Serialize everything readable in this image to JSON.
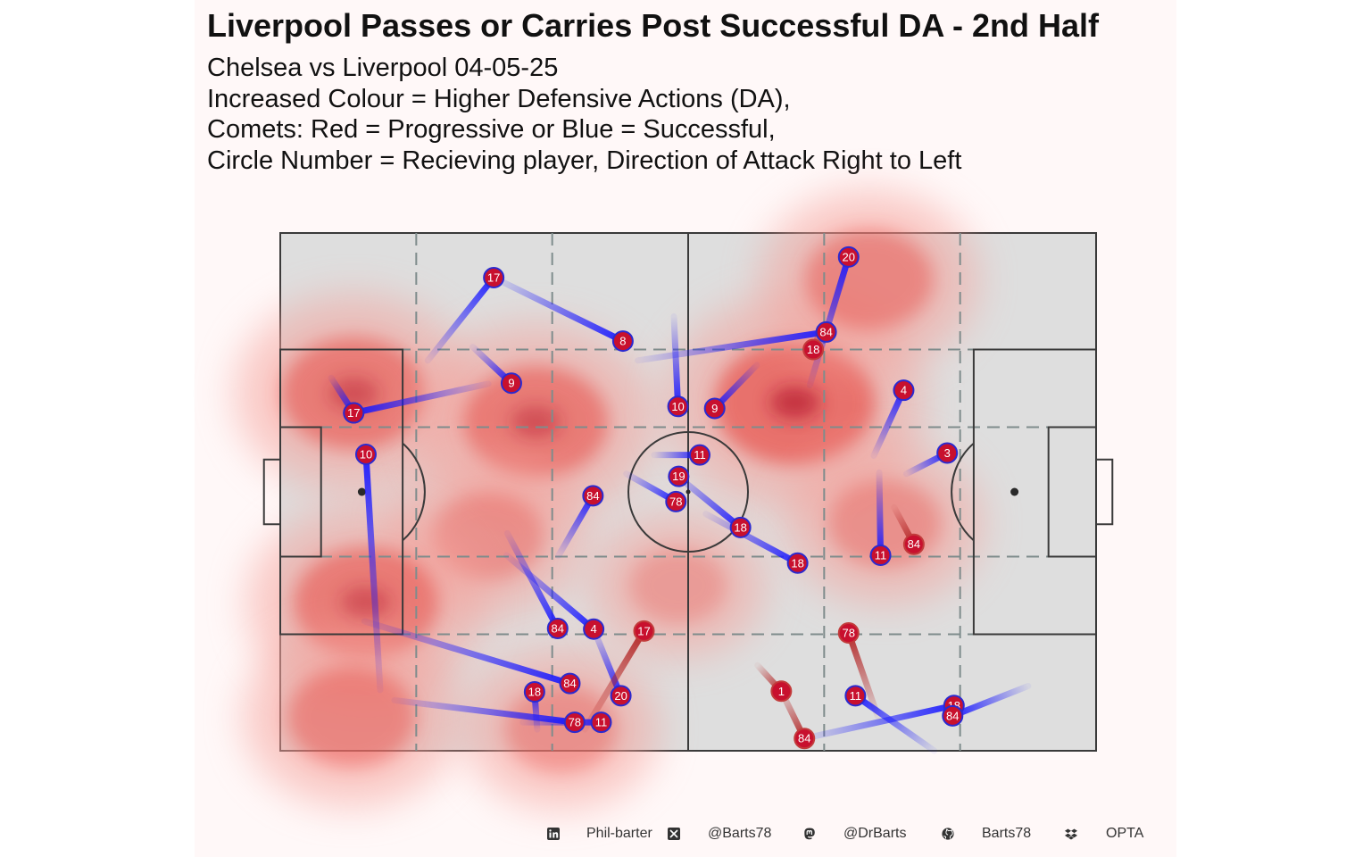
{
  "title": "Liverpool Passes or Carries Post Successful DA - 2nd Half",
  "subtitle_lines": [
    "Chelsea vs Liverpool 04-05-25",
    "Increased Colour = Higher Defensive Actions (DA),",
    "Comets: Red = Progressive or Blue = Successful,",
    "Circle Number = Recieving player, Direction of Attack Right to Left"
  ],
  "footer": {
    "linkedin": "Phil-barter",
    "x_handle": "@Barts78",
    "mastodon": "@DrBarts",
    "github": "Barts78",
    "source": "OPTA"
  },
  "icons": [
    "linkedin-icon",
    "x-icon",
    "mastodon-icon",
    "github-icon",
    "dropbox-icon"
  ],
  "colors": {
    "progressive": "#b22222",
    "successful": "#1a1aff",
    "marker_fill": "#c8102e",
    "pitch": "#dedede",
    "density": "#e8463f"
  },
  "chart_data": {
    "type": "scatter",
    "pitch_length": 120,
    "pitch_width": 80,
    "density_regions": [
      {
        "x": 10.8,
        "y": 55.2,
        "level": 4
      },
      {
        "x": 37.6,
        "y": 50.8,
        "level": 4
      },
      {
        "x": 30.5,
        "y": 33.1,
        "level": 2
      },
      {
        "x": 12.6,
        "y": 22.8,
        "level": 4
      },
      {
        "x": 10.5,
        "y": 5.2,
        "level": 3
      },
      {
        "x": 41.3,
        "y": 3.4,
        "level": 2
      },
      {
        "x": 75.7,
        "y": 53.8,
        "level": 5
      },
      {
        "x": 86.6,
        "y": 72.8,
        "level": 3
      },
      {
        "x": 88.9,
        "y": 35.1,
        "level": 2
      },
      {
        "x": 58.5,
        "y": 25.5,
        "level": 1
      }
    ],
    "actions": [
      {
        "type": "successful",
        "from": [
          21.7,
          60.3
        ],
        "to": [
          31.4,
          73.1
        ],
        "player": "17"
      },
      {
        "type": "successful",
        "from": [
          31.4,
          73.1
        ],
        "to": [
          50.4,
          63.3
        ],
        "player": "8"
      },
      {
        "type": "successful",
        "from": [
          28.3,
          62.4
        ],
        "to": [
          34.0,
          56.8
        ],
        "player": "9"
      },
      {
        "type": "successful",
        "from": [
          7.5,
          57.6
        ],
        "to": [
          10.8,
          52.2
        ],
        "player": "17"
      },
      {
        "type": "successful",
        "from": [
          30.6,
          56.7
        ],
        "to": [
          10.8,
          52.2
        ],
        "player": "17"
      },
      {
        "type": "successful",
        "from": [
          14.7,
          9.4
        ],
        "to": [
          12.6,
          45.8
        ],
        "player": "10"
      },
      {
        "type": "successful",
        "from": [
          57.9,
          67.1
        ],
        "to": [
          58.5,
          53.2
        ],
        "player": "10"
      },
      {
        "type": "successful",
        "from": [
          70.1,
          59.6
        ],
        "to": [
          63.9,
          52.9
        ],
        "player": "9"
      },
      {
        "type": "successful",
        "from": [
          52.6,
          60.3
        ],
        "to": [
          80.3,
          64.7
        ],
        "player": "84"
      },
      {
        "type": "successful",
        "from": [
          77.9,
          56.5
        ],
        "to": [
          83.6,
          76.3
        ],
        "player": "20"
      },
      {
        "type": "progressive",
        "from": [
          79.4,
          64.7
        ],
        "to": [
          78.4,
          62.0
        ],
        "player": "18"
      },
      {
        "type": "successful",
        "from": [
          87.3,
          45.6
        ],
        "to": [
          91.7,
          55.7
        ],
        "player": "4"
      },
      {
        "type": "successful",
        "from": [
          92.1,
          42.8
        ],
        "to": [
          98.1,
          46.0
        ],
        "player": "3"
      },
      {
        "type": "successful",
        "from": [
          88.1,
          43.0
        ],
        "to": [
          88.3,
          30.2
        ],
        "player": "11"
      },
      {
        "type": "progressive",
        "from": [
          90.3,
          37.6
        ],
        "to": [
          93.2,
          31.9
        ],
        "player": "84"
      },
      {
        "type": "successful",
        "from": [
          55.0,
          45.7
        ],
        "to": [
          61.7,
          45.7
        ],
        "player": "11"
      },
      {
        "type": "successful",
        "from": [
          50.9,
          42.8
        ],
        "to": [
          58.2,
          38.5
        ],
        "player": "78"
      },
      {
        "type": "successful",
        "from": [
          57.7,
          42.1
        ],
        "to": [
          58.6,
          42.4
        ],
        "player": "19"
      },
      {
        "type": "successful",
        "from": [
          58.0,
          42.8
        ],
        "to": [
          67.7,
          34.5
        ],
        "player": "18"
      },
      {
        "type": "successful",
        "from": [
          62.6,
          36.6
        ],
        "to": [
          76.1,
          29.0
        ],
        "player": "18"
      },
      {
        "type": "successful",
        "from": [
          40.9,
          30.1
        ],
        "to": [
          46.0,
          39.4
        ],
        "player": "84"
      },
      {
        "type": "successful",
        "from": [
          33.4,
          33.6
        ],
        "to": [
          40.8,
          18.9
        ],
        "player": "84"
      },
      {
        "type": "successful",
        "from": [
          33.3,
          30.2
        ],
        "to": [
          46.1,
          18.8
        ],
        "player": "4"
      },
      {
        "type": "successful",
        "from": [
          46.1,
          18.8
        ],
        "to": [
          50.1,
          8.5
        ],
        "player": "20"
      },
      {
        "type": "progressive",
        "from": [
          44.8,
          3.3
        ],
        "to": [
          53.5,
          18.5
        ],
        "player": "17"
      },
      {
        "type": "successful",
        "from": [
          12.4,
          20.0
        ],
        "to": [
          42.6,
          10.4
        ],
        "player": "84"
      },
      {
        "type": "successful",
        "from": [
          37.8,
          3.3
        ],
        "to": [
          37.4,
          9.1
        ],
        "player": "18"
      },
      {
        "type": "successful",
        "from": [
          16.8,
          7.8
        ],
        "to": [
          43.3,
          4.4
        ],
        "player": "78"
      },
      {
        "type": "successful",
        "from": [
          35.7,
          4.4
        ],
        "to": [
          47.2,
          4.4
        ],
        "player": "11"
      },
      {
        "type": "progressive",
        "from": [
          70.2,
          13.2
        ],
        "to": [
          73.7,
          9.2
        ],
        "player": "1"
      },
      {
        "type": "progressive",
        "from": [
          73.7,
          9.2
        ],
        "to": [
          77.1,
          1.9
        ],
        "player": "84"
      },
      {
        "type": "successful",
        "from": [
          77.1,
          1.9
        ],
        "to": [
          99.1,
          7.0
        ],
        "player": "18"
      },
      {
        "type": "progressive",
        "from": [
          87.9,
          5.3
        ],
        "to": [
          83.6,
          18.2
        ],
        "player": "78"
      },
      {
        "type": "successful",
        "from": [
          96.2,
          0.0
        ],
        "to": [
          84.6,
          8.5
        ],
        "player": "11"
      },
      {
        "type": "successful",
        "from": [
          110.0,
          10.0
        ],
        "to": [
          98.9,
          5.4
        ],
        "player": "84"
      }
    ]
  }
}
